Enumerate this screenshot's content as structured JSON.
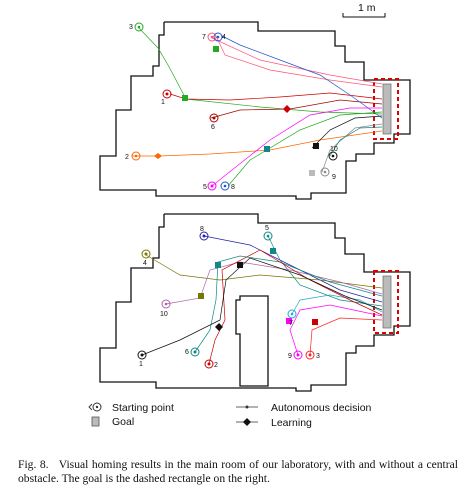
{
  "scale_bar": {
    "label": "1 m"
  },
  "legend": {
    "starting_point": "Starting point",
    "goal": "Goal",
    "autonomous_decision": "Autonomous decision",
    "learning": "Learning"
  },
  "top_panel": {
    "run_labels": [
      "1",
      "2",
      "3",
      "4",
      "5",
      "6",
      "7",
      "8",
      "9",
      "10"
    ],
    "colors": {
      "run1": "#cc0000",
      "run2": "#ff6600",
      "run3": "#22aa22",
      "run4": "#111111",
      "run5": "#ff00ff",
      "run6": "#aa0000",
      "run7": "#ff5577",
      "run8": "#2255cc",
      "run9": "#888888",
      "run10": "#118888"
    }
  },
  "bottom_panel": {
    "run_labels": [
      "1",
      "2",
      "3",
      "4",
      "5",
      "6",
      "7",
      "8",
      "9",
      "10"
    ],
    "colors": {
      "run1": "#111111",
      "run2": "#cc0000",
      "run3": "#ff2222",
      "run4": "#777700",
      "run5": "#118888",
      "run6": "#118888",
      "run7": "#22aacc",
      "run8": "#2222aa",
      "run9": "#ff00ff",
      "run10": "#aa66aa"
    }
  },
  "caption": {
    "label": "Fig. 8.",
    "text": "Visual homing results in the main room of our laboratory, with and without a central obstacle. The goal is the dashed rectangle on the right."
  }
}
